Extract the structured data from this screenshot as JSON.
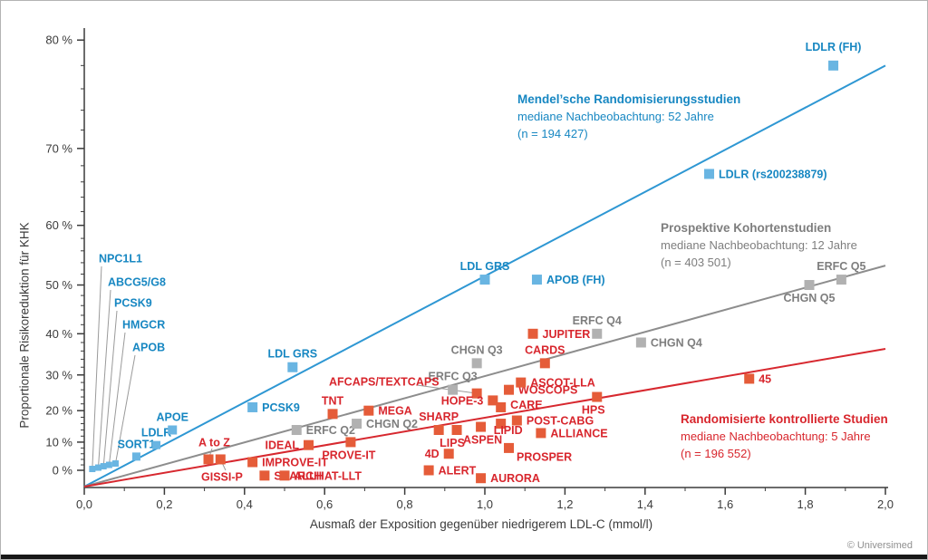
{
  "figure": {
    "footer": "© Universimed"
  },
  "chart_data": {
    "type": "scatter",
    "title": "",
    "xlabel": "Ausmaß der Exposition gegenüber niedrigerem LDL-C (mmol/l)",
    "ylabel": "Proportionale Risikoreduktion für KHK",
    "xlim": [
      0.0,
      2.0
    ],
    "ylim_pct": [
      0,
      80
    ],
    "y_scale": "log(1-p) proportional-risk scale",
    "grid": false,
    "x_ticks": [
      "0,0",
      "0,2",
      "0,4",
      "0,6",
      "0,8",
      "1,0",
      "1,2",
      "1,4",
      "1,6",
      "1,8",
      "2,0"
    ],
    "y_ticks": [
      "0 %",
      "10 %",
      "20 %",
      "30 %",
      "40 %",
      "50 %",
      "60 %",
      "70 %",
      "80 %"
    ],
    "axis_color": "#3b3b3b",
    "leader_line_color": "#9a9a9a",
    "series": [
      {
        "name": "Mendel'sche Randomisierungsstudien",
        "color_point": "#69b5e2",
        "color_line": "#2e97d3",
        "color_text": "#1787c2",
        "legend": {
          "title": "Mendel’sche Randomisierungsstudien",
          "followup": "mediane Nachbeobachtung: 52 Jahre",
          "n": "(n = 194 427)"
        },
        "trend_end_pct": 78,
        "points": [
          {
            "label": "NPC1L1",
            "x": 0.02,
            "y": 0.5,
            "s": 7,
            "lp": [
              108,
              284
            ],
            "lf": [
              111,
              293
            ]
          },
          {
            "label": "ABCG5/G8",
            "x": 0.035,
            "y": 1,
            "s": 7,
            "lp": [
              118,
              310
            ],
            "lf": [
              121,
              319
            ]
          },
          {
            "label": "PCSK9",
            "x": 0.048,
            "y": 1.5,
            "s": 7,
            "lp": [
              125,
              333
            ],
            "lf": [
              128,
              342
            ]
          },
          {
            "label": "HMGCR",
            "x": 0.062,
            "y": 2,
            "s": 7,
            "lp": [
              134,
              357
            ],
            "lf": [
              137,
              366
            ]
          },
          {
            "label": "APOB",
            "x": 0.078,
            "y": 2.5,
            "s": 7,
            "lp": [
              145,
              382
            ],
            "lf": [
              148,
              391
            ]
          },
          {
            "label": "SORT1",
            "x": 0.13,
            "y": 5,
            "s": 9,
            "pos": "above"
          },
          {
            "label": "LDLR",
            "x": 0.18,
            "y": 9,
            "s": 9,
            "pos": "above"
          },
          {
            "label": "APOE",
            "x": 0.22,
            "y": 14,
            "s": 10,
            "pos": "above"
          },
          {
            "label": "PCSK9",
            "x": 0.42,
            "y": 21,
            "pos": "right"
          },
          {
            "label": "LDL GRS",
            "x": 0.52,
            "y": 32,
            "pos": "above"
          },
          {
            "label": "LDL GRS",
            "x": 1.0,
            "y": 51,
            "pos": "above"
          },
          {
            "label": "APOB (FH)",
            "x": 1.13,
            "y": 51,
            "pos": "right"
          },
          {
            "label": "LDLR (rs200238879)",
            "x": 1.56,
            "y": 67,
            "pos": "right"
          },
          {
            "label": "LDLR (FH)",
            "x": 1.87,
            "y": 78,
            "pos": "above",
            "dy": -6
          }
        ]
      },
      {
        "name": "Prospektive Kohortenstudien",
        "color_point": "#b1b1b1",
        "color_line": "#8d8d8d",
        "color_text": "#7e7e7e",
        "legend": {
          "title": "Prospektive Kohortenstudien",
          "followup": "mediane Nachbeobachtung: 12 Jahre",
          "n": "(n = 403 501)"
        },
        "trend_end_pct": 53.5,
        "points": [
          {
            "label": "ERFC Q2",
            "x": 0.53,
            "y": 14,
            "pos": "right"
          },
          {
            "label": "CHGN Q2",
            "x": 0.68,
            "y": 16,
            "pos": "right"
          },
          {
            "label": "ERFC Q3",
            "x": 0.92,
            "y": 26,
            "pos": "above"
          },
          {
            "label": "CHGN Q3",
            "x": 0.98,
            "y": 33,
            "pos": "above"
          },
          {
            "label": "ERFC Q4",
            "x": 1.28,
            "y": 40,
            "pos": "above"
          },
          {
            "label": "CHGN Q4",
            "x": 1.39,
            "y": 38,
            "pos": "right"
          },
          {
            "label": "CHGN Q5",
            "x": 1.81,
            "y": 50,
            "pos": "below"
          },
          {
            "label": "ERFC Q5",
            "x": 1.89,
            "y": 51,
            "pos": "above"
          }
        ]
      },
      {
        "name": "Randomisierte kontrollierte Studien",
        "color_point": "#e55c39",
        "color_line": "#d7282f",
        "color_text": "#d8262d",
        "legend": {
          "title": "Randomisierte kontrollierte Studien",
          "followup": "mediane Nachbeobachtung: 5 Jahre",
          "n": "(n = 196 552)"
        },
        "trend_end_pct": 36.5,
        "points": [
          {
            "label": "A to Z",
            "x": 0.31,
            "y": 4,
            "lp": [
              218,
              487
            ],
            "lf": [
              233,
              494
            ]
          },
          {
            "label": "GISSI-P",
            "x": 0.34,
            "y": 4,
            "lp": [
              221,
              525
            ],
            "lf": [
              248,
              518
            ]
          },
          {
            "label": "IMPROVE-IT",
            "x": 0.42,
            "y": 3,
            "pos": "right"
          },
          {
            "label": "SEARCH",
            "x": 0.45,
            "y": -2,
            "pos": "right"
          },
          {
            "label": "ALLHAT-LLT",
            "x": 0.5,
            "y": -2,
            "pos": "right"
          },
          {
            "label": "IDEAL",
            "x": 0.56,
            "y": 9,
            "pos": "left"
          },
          {
            "label": "PROVE-IT",
            "x": 0.665,
            "y": 10,
            "pos": "below",
            "dx": -2
          },
          {
            "label": "TNT",
            "x": 0.62,
            "y": 19,
            "pos": "above"
          },
          {
            "label": "MEGA",
            "x": 0.71,
            "y": 20,
            "pos": "right"
          },
          {
            "label": "AFCAPS/TEXTCAPS",
            "x": 0.98,
            "y": 25,
            "lp": [
              362,
              420
            ],
            "lf": [
              459,
              424
            ]
          },
          {
            "label": "SHARP",
            "x": 0.885,
            "y": 14,
            "pos": "above"
          },
          {
            "label": "LIPS",
            "x": 0.93,
            "y": 14,
            "pos": "below",
            "dx": -5
          },
          {
            "label": "ASPEN",
            "x": 0.99,
            "y": 15,
            "pos": "below",
            "dx": 2
          },
          {
            "label": "4D",
            "x": 0.91,
            "y": 6,
            "pos": "left"
          },
          {
            "label": "ALERT",
            "x": 0.86,
            "y": 0,
            "pos": "right"
          },
          {
            "label": "AURORA",
            "x": 0.99,
            "y": -3,
            "pos": "right"
          },
          {
            "label": "HOPE-3",
            "x": 1.02,
            "y": 23,
            "pos": "left"
          },
          {
            "label": "CARE",
            "x": 1.04,
            "y": 21,
            "pos": "right",
            "dy": -3
          },
          {
            "label": "WOSCOPS",
            "x": 1.06,
            "y": 26,
            "pos": "right"
          },
          {
            "label": "ASCOT-LLA",
            "x": 1.09,
            "y": 28,
            "pos": "right"
          },
          {
            "label": "CARDS",
            "x": 1.15,
            "y": 33,
            "pos": "above"
          },
          {
            "label": "JUPITER",
            "x": 1.12,
            "y": 40,
            "pos": "right"
          },
          {
            "label": "POST-CABG",
            "x": 1.08,
            "y": 17,
            "pos": "right"
          },
          {
            "label": "LIPID",
            "x": 1.04,
            "y": 16,
            "pos": "below",
            "dx": 8,
            "dy": -7
          },
          {
            "label": "ALLIANCE",
            "x": 1.14,
            "y": 13,
            "pos": "right"
          },
          {
            "label": "PROSPER",
            "x": 1.06,
            "y": 8,
            "pos": "below-right"
          },
          {
            "label": "HPS",
            "x": 1.28,
            "y": 24,
            "pos": "below",
            "dx": -4
          },
          {
            "label": "45",
            "x": 1.66,
            "y": 29,
            "pos": "right"
          }
        ]
      }
    ]
  }
}
